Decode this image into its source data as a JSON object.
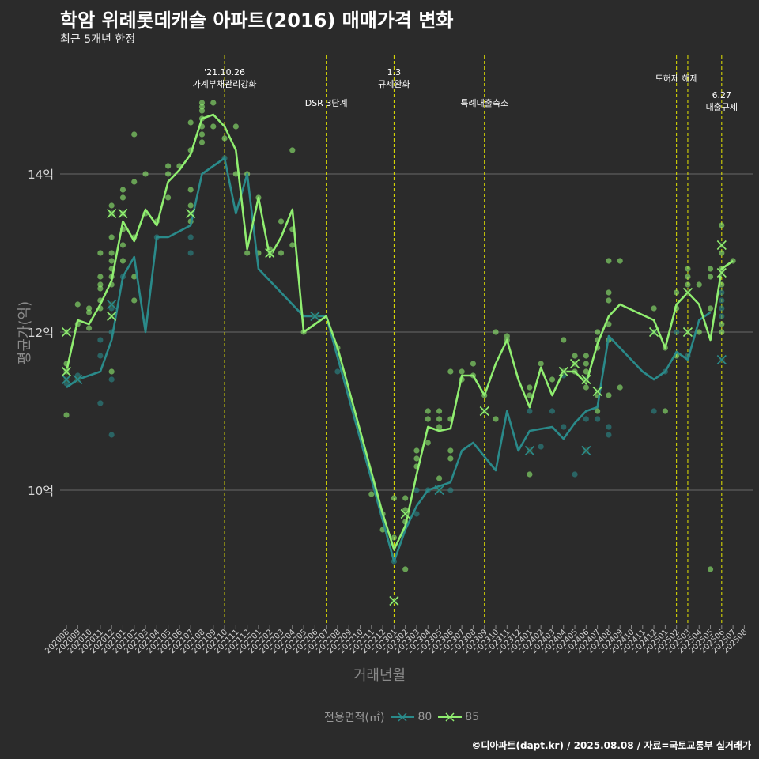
{
  "chart_data": {
    "type": "line",
    "title": "학암 위례롯데캐슬 아파트(2016) 매매가격 변화",
    "subtitle": "최근 5개년 한정",
    "xlabel": "거래년월",
    "ylabel": "평균가(억)",
    "legend_title": "전용면적(㎡)",
    "legend_position": "bottom",
    "caption": "©디아파트(dapt.kr) / 2025.08.08 / 자료=국토교통부 실거래가",
    "x_ticks": [
      "202008",
      "202009",
      "202010",
      "202011",
      "202012",
      "202101",
      "202102",
      "202103",
      "202104",
      "202105",
      "202106",
      "202107",
      "202108",
      "202109",
      "202110",
      "202111",
      "202112",
      "202201",
      "202202",
      "202203",
      "202204",
      "202205",
      "202206",
      "202207",
      "202208",
      "202209",
      "202210",
      "202211",
      "202212",
      "202301",
      "202302",
      "202303",
      "202304",
      "202305",
      "202306",
      "202307",
      "202308",
      "202309",
      "202310",
      "202311",
      "202312",
      "202401",
      "202402",
      "202403",
      "202404",
      "202405",
      "202406",
      "202407",
      "202408",
      "202409",
      "202410",
      "202411",
      "202412",
      "202501",
      "202502",
      "202503",
      "202504",
      "202505",
      "202506",
      "202507",
      "202508"
    ],
    "y_ticks": [
      {
        "value": 10,
        "label": "10억"
      },
      {
        "value": 12,
        "label": "12억"
      },
      {
        "value": 14,
        "label": "14억"
      }
    ],
    "ylim": [
      8.25,
      14.9
    ],
    "grid": true,
    "series": [
      {
        "name": "80",
        "color": "#2a8a8a",
        "points": [
          [
            0,
            11.3
          ],
          [
            1,
            11.4
          ],
          [
            3,
            11.5
          ],
          [
            4,
            11.9
          ],
          [
            5,
            12.7
          ],
          [
            6,
            12.95
          ],
          [
            7,
            12.0
          ],
          [
            8,
            13.2
          ],
          [
            9,
            13.2
          ],
          [
            11,
            13.35
          ],
          [
            12,
            14.0
          ],
          [
            14,
            14.2
          ],
          [
            15,
            13.5
          ],
          [
            16,
            14.0
          ],
          [
            17,
            12.8
          ],
          [
            21,
            12.2
          ],
          [
            23,
            12.2
          ],
          [
            29,
            9.1
          ],
          [
            30,
            9.5
          ],
          [
            31,
            9.8
          ],
          [
            32,
            10.0
          ],
          [
            33,
            10.05
          ],
          [
            34,
            10.1
          ],
          [
            35,
            10.5
          ],
          [
            36,
            10.6
          ],
          [
            38,
            10.25
          ],
          [
            39,
            11.0
          ],
          [
            40,
            10.5
          ],
          [
            41,
            10.75
          ],
          [
            43,
            10.8
          ],
          [
            44,
            10.65
          ],
          [
            45,
            10.85
          ],
          [
            46,
            11.0
          ],
          [
            47,
            11.05
          ],
          [
            48,
            11.95
          ],
          [
            51,
            11.5
          ],
          [
            52,
            11.4
          ],
          [
            53,
            11.5
          ],
          [
            54,
            11.75
          ],
          [
            55,
            11.65
          ],
          [
            56,
            12.15
          ],
          [
            57,
            12.25
          ]
        ]
      },
      {
        "name": "85",
        "color": "#90ee70",
        "points": [
          [
            0,
            11.5
          ],
          [
            1,
            12.15
          ],
          [
            2,
            12.1
          ],
          [
            3,
            12.35
          ],
          [
            4,
            12.65
          ],
          [
            5,
            13.4
          ],
          [
            6,
            13.15
          ],
          [
            7,
            13.55
          ],
          [
            8,
            13.35
          ],
          [
            9,
            13.9
          ],
          [
            10,
            14.05
          ],
          [
            11,
            14.25
          ],
          [
            12,
            14.7
          ],
          [
            13,
            14.75
          ],
          [
            14,
            14.6
          ],
          [
            15,
            14.3
          ],
          [
            16,
            13.05
          ],
          [
            17,
            13.7
          ],
          [
            18,
            12.95
          ],
          [
            19,
            13.2
          ],
          [
            20,
            13.55
          ],
          [
            21,
            12.0
          ],
          [
            23,
            12.2
          ],
          [
            24,
            11.8
          ],
          [
            28,
            9.7
          ],
          [
            29,
            9.25
          ],
          [
            30,
            9.55
          ],
          [
            31,
            10.2
          ],
          [
            32,
            10.8
          ],
          [
            33,
            10.75
          ],
          [
            34,
            10.78
          ],
          [
            35,
            11.45
          ],
          [
            36,
            11.45
          ],
          [
            37,
            11.2
          ],
          [
            38,
            11.6
          ],
          [
            39,
            11.9
          ],
          [
            40,
            11.4
          ],
          [
            41,
            11.05
          ],
          [
            42,
            11.55
          ],
          [
            43,
            11.2
          ],
          [
            44,
            11.5
          ],
          [
            45,
            11.5
          ],
          [
            46,
            11.35
          ],
          [
            47,
            11.85
          ],
          [
            48,
            12.2
          ],
          [
            49,
            12.35
          ],
          [
            52,
            12.15
          ],
          [
            53,
            11.8
          ],
          [
            54,
            12.35
          ],
          [
            55,
            12.5
          ],
          [
            56,
            12.35
          ],
          [
            57,
            11.9
          ],
          [
            58,
            12.8
          ],
          [
            59,
            12.9
          ]
        ]
      }
    ],
    "crosses": {
      "80": [
        [
          0,
          11.4
        ],
        [
          1,
          11.4
        ],
        [
          4,
          12.35
        ],
        [
          22,
          12.2
        ],
        [
          33,
          10.0
        ],
        [
          41,
          10.5
        ],
        [
          46,
          10.5
        ],
        [
          58,
          11.65
        ]
      ],
      "85": [
        [
          0,
          12.0
        ],
        [
          0,
          11.5
        ],
        [
          4,
          13.5
        ],
        [
          4,
          12.2
        ],
        [
          5,
          13.5
        ],
        [
          11,
          13.5
        ],
        [
          18,
          13.0
        ],
        [
          29,
          8.6
        ],
        [
          30,
          9.7
        ],
        [
          37,
          11.0
        ],
        [
          44,
          11.5
        ],
        [
          45,
          11.6
        ],
        [
          46,
          11.4
        ],
        [
          47,
          11.25
        ],
        [
          52,
          12.0
        ],
        [
          55,
          12.5
        ],
        [
          55,
          12.0
        ],
        [
          58,
          13.1
        ],
        [
          58,
          12.75
        ]
      ]
    },
    "annotations": [
      {
        "x": 14,
        "lines": [
          "'21.10.26",
          "가계부채관리강화"
        ],
        "pos": "high"
      },
      {
        "x": 23,
        "lines": [
          "DSR 3단계"
        ],
        "pos": "low"
      },
      {
        "x": 29,
        "lines": [
          "1.3",
          "규제완화"
        ],
        "pos": "high"
      },
      {
        "x": 37,
        "lines": [
          "특례대출축소"
        ],
        "pos": "low"
      },
      {
        "x": 54,
        "lines": [
          "토허제 해제"
        ],
        "pos": "mid",
        "line_only": false
      },
      {
        "x": 55,
        "lines": [],
        "pos": "mid"
      },
      {
        "x": 58,
        "lines": [
          "6.27",
          "대출규제"
        ],
        "pos": "lower"
      }
    ],
    "dots": [
      [
        0,
        11.35,
        0
      ],
      [
        0,
        11.5,
        1
      ],
      [
        0,
        12.0,
        1
      ],
      [
        0,
        11.6,
        1
      ],
      [
        0,
        10.95,
        1
      ],
      [
        1,
        11.45,
        0
      ],
      [
        1,
        12.35,
        1
      ],
      [
        1,
        12.1,
        1
      ],
      [
        2,
        12.3,
        1
      ],
      [
        2,
        12.05,
        1
      ],
      [
        2,
        12.25,
        1
      ],
      [
        3,
        11.1,
        0
      ],
      [
        3,
        11.7,
        0
      ],
      [
        3,
        11.9,
        0
      ],
      [
        3,
        12.3,
        1
      ],
      [
        3,
        12.6,
        1
      ],
      [
        3,
        12.7,
        1
      ],
      [
        3,
        13.0,
        1
      ],
      [
        3,
        12.55,
        1
      ],
      [
        3,
        12.4,
        1
      ],
      [
        4,
        10.7,
        0
      ],
      [
        4,
        11.4,
        0
      ],
      [
        4,
        12.0,
        0
      ],
      [
        4,
        12.3,
        0
      ],
      [
        4,
        12.7,
        1
      ],
      [
        4,
        12.8,
        1
      ],
      [
        4,
        13.2,
        1
      ],
      [
        4,
        13.5,
        1
      ],
      [
        4,
        13.0,
        1
      ],
      [
        4,
        13.6,
        1
      ],
      [
        4,
        12.6,
        1
      ],
      [
        4,
        12.9,
        1
      ],
      [
        4,
        11.5,
        1
      ],
      [
        5,
        12.7,
        0
      ],
      [
        5,
        12.9,
        1
      ],
      [
        5,
        13.3,
        1
      ],
      [
        5,
        13.7,
        1
      ],
      [
        5,
        13.8,
        1
      ],
      [
        5,
        13.1,
        1
      ],
      [
        5,
        13.5,
        1
      ],
      [
        6,
        12.4,
        1
      ],
      [
        6,
        12.7,
        1
      ],
      [
        6,
        13.2,
        1
      ],
      [
        6,
        13.9,
        1
      ],
      [
        6,
        14.5,
        1
      ],
      [
        7,
        13.5,
        1
      ],
      [
        7,
        14.0,
        1
      ],
      [
        8,
        13.4,
        1
      ],
      [
        8,
        13.2,
        0
      ],
      [
        9,
        13.7,
        1
      ],
      [
        9,
        14.0,
        1
      ],
      [
        9,
        14.1,
        1
      ],
      [
        10,
        14.1,
        1
      ],
      [
        11,
        13.0,
        0
      ],
      [
        11,
        13.2,
        0
      ],
      [
        11,
        13.4,
        1
      ],
      [
        11,
        13.6,
        1
      ],
      [
        11,
        13.8,
        1
      ],
      [
        11,
        14.3,
        1
      ],
      [
        11,
        14.65,
        1
      ],
      [
        12,
        14.4,
        1
      ],
      [
        12,
        14.5,
        1
      ],
      [
        12,
        14.6,
        1
      ],
      [
        12,
        14.8,
        1
      ],
      [
        12,
        14.9,
        1
      ],
      [
        12,
        14.85,
        1
      ],
      [
        12,
        14.7,
        1
      ],
      [
        13,
        14.9,
        1
      ],
      [
        13,
        14.6,
        1
      ],
      [
        14,
        14.45,
        1
      ],
      [
        14,
        14.2,
        0
      ],
      [
        15,
        14.0,
        1
      ],
      [
        15,
        14.6,
        1
      ],
      [
        16,
        14.0,
        1
      ],
      [
        16,
        13.0,
        1
      ],
      [
        17,
        13.0,
        1
      ],
      [
        17,
        13.7,
        1
      ],
      [
        18,
        13.05,
        1
      ],
      [
        19,
        13.4,
        1
      ],
      [
        19,
        13.0,
        1
      ],
      [
        20,
        13.3,
        1
      ],
      [
        20,
        14.3,
        1
      ],
      [
        20,
        13.1,
        1
      ],
      [
        21,
        12.0,
        1
      ],
      [
        24,
        11.8,
        1
      ],
      [
        24,
        11.5,
        0
      ],
      [
        27,
        9.95,
        1
      ],
      [
        28,
        9.5,
        1
      ],
      [
        28,
        9.7,
        1
      ],
      [
        29,
        9.1,
        0
      ],
      [
        29,
        9.4,
        1
      ],
      [
        29,
        9.9,
        1
      ],
      [
        30,
        9.0,
        1
      ],
      [
        30,
        9.6,
        1
      ],
      [
        30,
        9.75,
        1
      ],
      [
        30,
        9.9,
        1
      ],
      [
        31,
        9.7,
        0
      ],
      [
        31,
        10.3,
        1
      ],
      [
        31,
        10.4,
        1
      ],
      [
        31,
        10.5,
        1
      ],
      [
        31,
        10.0,
        0
      ],
      [
        32,
        10.9,
        1
      ],
      [
        32,
        11.0,
        1
      ],
      [
        32,
        10.6,
        1
      ],
      [
        32,
        10.0,
        0
      ],
      [
        33,
        10.8,
        1
      ],
      [
        33,
        10.9,
        1
      ],
      [
        33,
        11.0,
        1
      ],
      [
        33,
        10.15,
        1
      ],
      [
        34,
        10.0,
        0
      ],
      [
        34,
        10.4,
        1
      ],
      [
        34,
        10.5,
        1
      ],
      [
        34,
        10.9,
        1
      ],
      [
        34,
        11.5,
        1
      ],
      [
        35,
        11.5,
        1
      ],
      [
        35,
        11.4,
        1
      ],
      [
        36,
        11.6,
        1
      ],
      [
        36,
        11.45,
        1
      ],
      [
        37,
        11.2,
        1
      ],
      [
        38,
        12.0,
        1
      ],
      [
        38,
        10.9,
        1
      ],
      [
        39,
        11.95,
        1
      ],
      [
        39,
        11.9,
        1
      ],
      [
        41,
        10.2,
        1
      ],
      [
        41,
        11.3,
        1
      ],
      [
        41,
        11.2,
        1
      ],
      [
        41,
        11.0,
        0
      ],
      [
        42,
        11.6,
        1
      ],
      [
        42,
        10.55,
        0
      ],
      [
        43,
        11.4,
        1
      ],
      [
        43,
        11.0,
        0
      ],
      [
        44,
        11.9,
        1
      ],
      [
        44,
        11.5,
        1
      ],
      [
        44,
        10.8,
        0
      ],
      [
        44,
        11.45,
        0
      ],
      [
        45,
        11.6,
        1
      ],
      [
        45,
        10.2,
        0
      ],
      [
        45,
        11.7,
        1
      ],
      [
        45,
        11.5,
        1
      ],
      [
        46,
        11.6,
        1
      ],
      [
        46,
        11.5,
        1
      ],
      [
        46,
        11.3,
        1
      ],
      [
        46,
        11.7,
        1
      ],
      [
        46,
        10.9,
        0
      ],
      [
        46,
        11.4,
        0
      ],
      [
        47,
        11.0,
        1
      ],
      [
        47,
        10.9,
        0
      ],
      [
        47,
        11.2,
        1
      ],
      [
        47,
        11.8,
        1
      ],
      [
        47,
        11.9,
        1
      ],
      [
        47,
        12.0,
        1
      ],
      [
        48,
        11.9,
        1
      ],
      [
        48,
        11.2,
        1
      ],
      [
        48,
        10.7,
        0
      ],
      [
        48,
        10.8,
        0
      ],
      [
        48,
        12.9,
        1
      ],
      [
        48,
        12.1,
        1
      ],
      [
        48,
        12.4,
        1
      ],
      [
        48,
        12.5,
        1
      ],
      [
        49,
        12.9,
        1
      ],
      [
        49,
        11.3,
        1
      ],
      [
        52,
        12.0,
        0
      ],
      [
        52,
        11.0,
        0
      ],
      [
        52,
        12.3,
        1
      ],
      [
        53,
        11.0,
        1
      ],
      [
        53,
        11.5,
        0
      ],
      [
        53,
        11.8,
        1
      ],
      [
        54,
        12.0,
        0
      ],
      [
        54,
        12.5,
        1
      ],
      [
        54,
        11.7,
        1
      ],
      [
        54,
        12.3,
        1
      ],
      [
        55,
        12.7,
        1
      ],
      [
        55,
        12.6,
        1
      ],
      [
        55,
        11.7,
        0
      ],
      [
        55,
        12.8,
        1
      ],
      [
        56,
        12.6,
        1
      ],
      [
        56,
        12.0,
        1
      ],
      [
        57,
        12.3,
        1
      ],
      [
        57,
        12.7,
        1
      ],
      [
        57,
        12.8,
        1
      ],
      [
        57,
        9.0,
        1
      ],
      [
        58,
        12.0,
        1
      ],
      [
        58,
        12.3,
        0
      ],
      [
        58,
        12.5,
        0
      ],
      [
        58,
        12.6,
        1
      ],
      [
        58,
        12.8,
        1
      ],
      [
        58,
        13.0,
        1
      ],
      [
        58,
        13.35,
        1
      ],
      [
        58,
        12.1,
        1
      ],
      [
        58,
        12.4,
        0
      ],
      [
        58,
        12.2,
        0
      ],
      [
        59,
        12.9,
        1
      ]
    ]
  }
}
